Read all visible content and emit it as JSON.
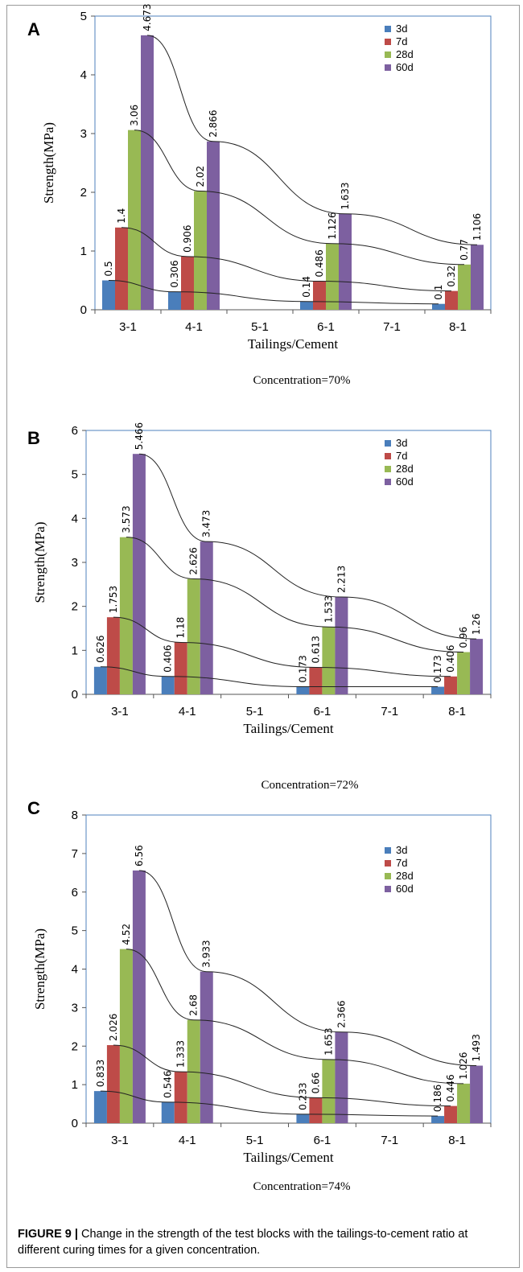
{
  "caption": {
    "label": "FIGURE 9 |",
    "text": "Change in the strength of the test blocks with the tailings-to-cement ratio at different curing times for a given concentration."
  },
  "colors": {
    "3d": "#4a7ebb",
    "7d": "#be4b48",
    "28d": "#98b954",
    "60d": "#7d60a0",
    "frame": "#4f81bd"
  },
  "chart_data": [
    {
      "type": "bar",
      "panel_label": "A",
      "xlabel": "Tailings/Cement",
      "ylabel": "Strength(MPa)",
      "note": "Concentration=70%",
      "categories": [
        "3-1",
        "4-1",
        "5-1",
        "6-1",
        "7-1",
        "8-1"
      ],
      "ylim": [
        0,
        5
      ],
      "yticks": [
        0,
        1,
        2,
        3,
        4,
        5
      ],
      "legend_position": "top-right",
      "grid": false,
      "series": [
        {
          "name": "3d",
          "values": [
            0.5,
            0.306,
            null,
            0.14,
            null,
            0.1
          ],
          "labels": [
            "0.5",
            "0.306",
            "",
            "0.14",
            "",
            "0.1"
          ]
        },
        {
          "name": "7d",
          "values": [
            1.4,
            0.906,
            null,
            0.486,
            null,
            0.32
          ],
          "labels": [
            "1.4",
            "0.906",
            "",
            "0.486",
            "",
            "0.32"
          ]
        },
        {
          "name": "28d",
          "values": [
            3.06,
            2.02,
            null,
            1.126,
            null,
            0.77
          ],
          "labels": [
            "3.06",
            "2.02",
            "",
            "1.126",
            "",
            "0.77"
          ]
        },
        {
          "name": "60d",
          "values": [
            4.673,
            2.866,
            null,
            1.633,
            null,
            1.106
          ],
          "labels": [
            "4.673",
            "2.866",
            "",
            "1.633",
            "",
            "1.106"
          ]
        }
      ]
    },
    {
      "type": "bar",
      "panel_label": "B",
      "xlabel": "Tailings/Cement",
      "ylabel": "Strength(MPa)",
      "note": "Concentration=72%",
      "categories": [
        "3-1",
        "4-1",
        "5-1",
        "6-1",
        "7-1",
        "8-1"
      ],
      "ylim": [
        0,
        6
      ],
      "yticks": [
        0,
        1,
        2,
        3,
        4,
        5,
        6
      ],
      "legend_position": "top-right",
      "grid": false,
      "series": [
        {
          "name": "3d",
          "values": [
            0.626,
            0.406,
            null,
            0.173,
            null,
            0.173
          ],
          "labels": [
            "0.626",
            "0.406",
            "",
            "0.173",
            "",
            "0.173"
          ]
        },
        {
          "name": "7d",
          "values": [
            1.753,
            1.18,
            null,
            0.613,
            null,
            0.406
          ],
          "labels": [
            "1.753",
            "1.18",
            "",
            "0.613",
            "",
            "0.406"
          ]
        },
        {
          "name": "28d",
          "values": [
            3.573,
            2.626,
            null,
            1.533,
            null,
            0.96
          ],
          "labels": [
            "3.573",
            "2.626",
            "",
            "1.533",
            "",
            "0.96"
          ]
        },
        {
          "name": "60d",
          "values": [
            5.466,
            3.473,
            null,
            2.213,
            null,
            1.26
          ],
          "labels": [
            "5.466",
            "3.473",
            "",
            "2.213",
            "",
            "1.26"
          ]
        }
      ]
    },
    {
      "type": "bar",
      "panel_label": "C",
      "xlabel": "Tailings/Cement",
      "ylabel": "Strength(MPa)",
      "note": "Concentration=74%",
      "categories": [
        "3-1",
        "4-1",
        "5-1",
        "6-1",
        "7-1",
        "8-1"
      ],
      "ylim": [
        0,
        8
      ],
      "yticks": [
        0,
        1,
        2,
        3,
        4,
        5,
        6,
        7,
        8
      ],
      "legend_position": "top-right",
      "grid": false,
      "series": [
        {
          "name": "3d",
          "values": [
            0.833,
            0.546,
            null,
            0.233,
            null,
            0.186
          ],
          "labels": [
            "0.833",
            "0.546",
            "",
            "0.233",
            "",
            "0.186"
          ]
        },
        {
          "name": "7d",
          "values": [
            2.026,
            1.333,
            null,
            0.66,
            null,
            0.446
          ],
          "labels": [
            "2.026",
            "1.333",
            "",
            "0.66",
            "",
            "0.446"
          ]
        },
        {
          "name": "28d",
          "values": [
            4.52,
            2.68,
            null,
            1.653,
            null,
            1.026
          ],
          "labels": [
            "4.52",
            "2.68",
            "",
            "1.653",
            "",
            "1.026"
          ]
        },
        {
          "name": "60d",
          "values": [
            6.56,
            3.933,
            null,
            2.366,
            null,
            1.493
          ],
          "labels": [
            "6.56",
            "3.933",
            "",
            "2.366",
            "",
            "1.493"
          ]
        }
      ]
    }
  ]
}
